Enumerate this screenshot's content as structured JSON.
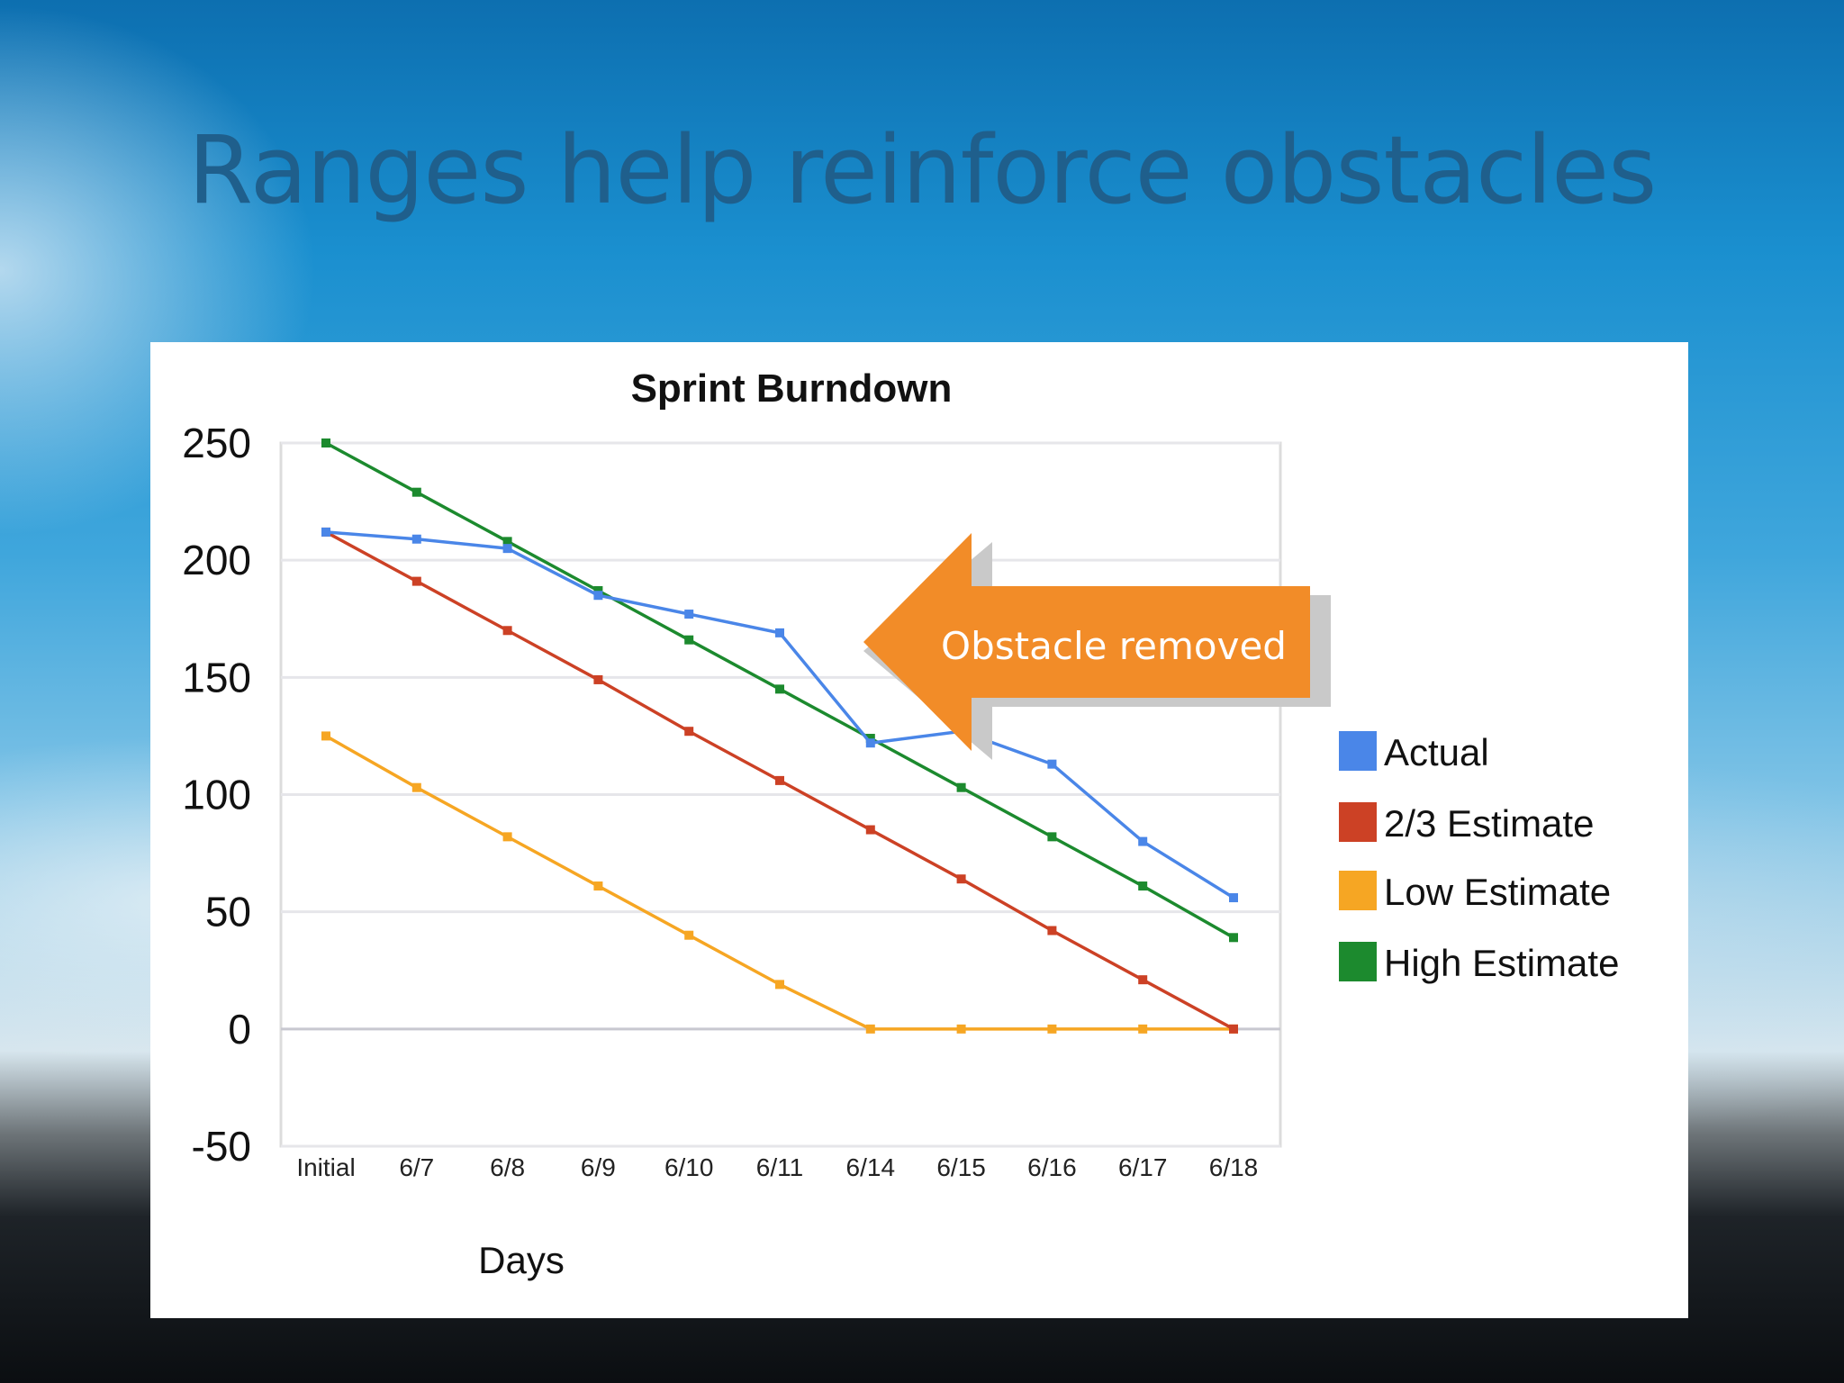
{
  "slide": {
    "title": "Ranges help reinforce obstacles"
  },
  "chart_data": {
    "type": "line",
    "title": "Sprint Burndown",
    "xlabel": "Days",
    "ylabel": "",
    "ylim": [
      -50,
      250
    ],
    "yticks": [
      250,
      200,
      150,
      100,
      50,
      0,
      -50
    ],
    "categories": [
      "Initial",
      "6/7",
      "6/8",
      "6/9",
      "6/10",
      "6/11",
      "6/14",
      "6/15",
      "6/16",
      "6/17",
      "6/18"
    ],
    "grid": true,
    "legend_position": "right",
    "series": [
      {
        "name": "Actual",
        "color": "#4a86e8",
        "values": [
          212,
          209,
          205,
          185,
          177,
          169,
          122,
          127,
          113,
          80,
          56
        ]
      },
      {
        "name": "2/3 Estimate",
        "color": "#cc4125",
        "values": [
          212,
          191,
          170,
          149,
          127,
          106,
          85,
          64,
          42,
          21,
          0
        ]
      },
      {
        "name": "Low Estimate",
        "color": "#f6a623",
        "values": [
          125,
          103,
          82,
          61,
          40,
          19,
          0,
          0,
          0,
          0,
          0
        ]
      },
      {
        "name": "High Estimate",
        "color": "#1c8a2e",
        "values": [
          250,
          229,
          208,
          187,
          166,
          145,
          124,
          103,
          82,
          61,
          39
        ]
      }
    ],
    "annotation": {
      "text": "Obstacle removed",
      "color": "#f28c28"
    }
  }
}
